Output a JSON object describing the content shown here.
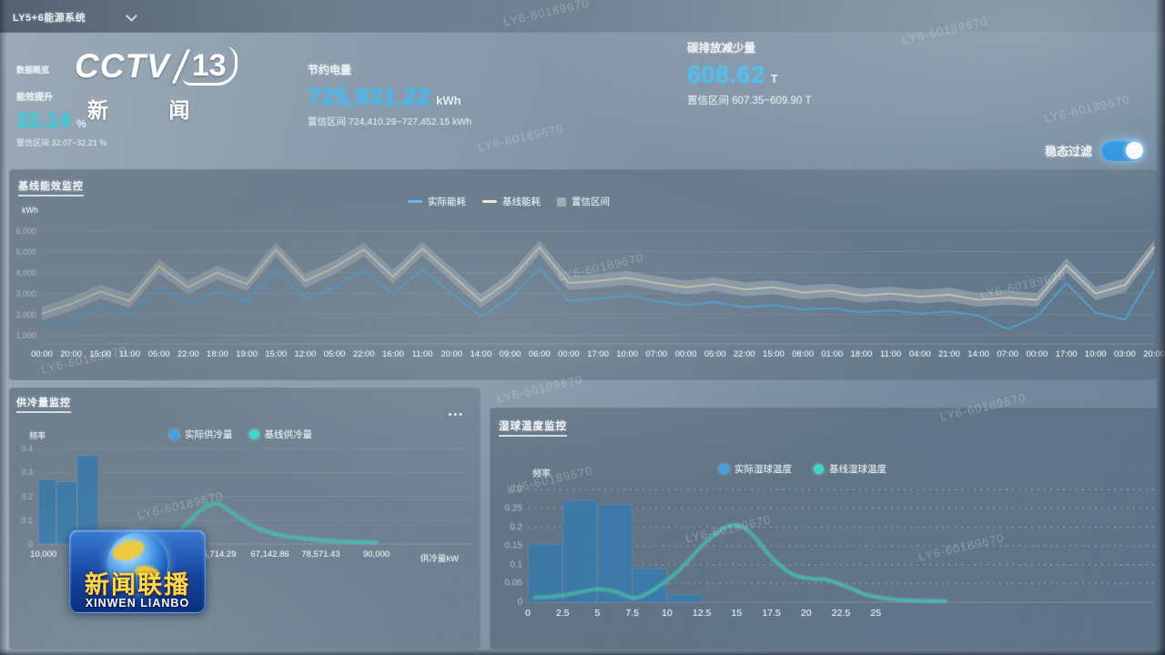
{
  "window": {
    "system_selector": "LY5+6能源系统"
  },
  "overview_label": "数据概览",
  "kpis": [
    {
      "label": "能效提升",
      "value": "32.14",
      "unit": "%",
      "confidence": "置信区间 32.07~32.21 %"
    },
    {
      "label": "节约电量",
      "value": "725,931.22",
      "unit": "kWh",
      "confidence": "置信区间 724,410.29~727,452.15 kWh"
    },
    {
      "label": "碳排放减少量",
      "value": "608.62",
      "unit": "T",
      "confidence": "置信区间 607.35~609.90 T"
    }
  ],
  "filter_toggle": {
    "label": "稳态过滤",
    "state": "on"
  },
  "watermark_text": "LY6-60189670",
  "tv_overlay": {
    "channel": {
      "brand": "CCTV",
      "number": "13",
      "caption": "新 闻"
    },
    "program": {
      "title": "新闻联播",
      "romanized": "XINWEN LIANBO"
    }
  },
  "chart_data": [
    {
      "type": "line",
      "title": "基线能效监控",
      "ylabel": "kWh",
      "legend": [
        {
          "label": "实际能耗",
          "swatch": "line",
          "color": "#58baf2"
        },
        {
          "label": "基线能耗",
          "swatch": "line",
          "color": "#f3ecca"
        },
        {
          "label": "置信区间",
          "swatch": "rect",
          "color": "rgba(226,233,240,0.45)"
        }
      ],
      "x": [
        "00:00",
        "20:00",
        "15:00",
        "11:00",
        "05:00",
        "22:00",
        "18:00",
        "19:00",
        "15:00",
        "12:00",
        "05:00",
        "22:00",
        "16:00",
        "11:00",
        "20:00",
        "14:00",
        "09:00",
        "06:00",
        "00:00",
        "17:00",
        "10:00",
        "07:00",
        "00:00",
        "05:00",
        "22:00",
        "15:00",
        "08:00",
        "01:00",
        "18:00",
        "11:00",
        "04:00",
        "21:00",
        "14:00",
        "07:00",
        "00:00",
        "17:00",
        "10:00",
        "03:00",
        "20:00"
      ],
      "yticks": [
        1000,
        2000,
        3000,
        4000,
        5000,
        6000
      ],
      "ylim": [
        600,
        6500
      ],
      "band_delta": 330,
      "series": [
        {
          "name": "实际能耗",
          "color": "#58baf2",
          "values": [
            1500,
            1700,
            2400,
            1950,
            3300,
            2500,
            3100,
            2600,
            4100,
            2750,
            3300,
            4100,
            2950,
            4150,
            3000,
            1900,
            2800,
            4200,
            2650,
            2750,
            2900,
            2650,
            2450,
            2600,
            2350,
            2450,
            2250,
            2300,
            2100,
            2200,
            2050,
            2150,
            1950,
            1300,
            1900,
            3500,
            2100,
            1750,
            4100
          ]
        },
        {
          "name": "基线能耗",
          "color": "#f3ecca",
          "values": [
            2050,
            2500,
            3100,
            2650,
            4300,
            3300,
            4000,
            3450,
            5100,
            3600,
            4250,
            5100,
            3800,
            5150,
            3900,
            2650,
            3650,
            5200,
            3500,
            3600,
            3750,
            3500,
            3300,
            3450,
            3200,
            3300,
            3050,
            3150,
            2900,
            3000,
            2850,
            2950,
            2700,
            2800,
            2700,
            4350,
            3000,
            3400,
            5200
          ]
        }
      ]
    },
    {
      "type": "histogram+density",
      "title": "供冷量监控",
      "ylabel": "频率",
      "xlabel": "供冷量kW",
      "legend": [
        {
          "label": "实际供冷量",
          "swatch": "dot",
          "color": "#3fa0e6"
        },
        {
          "label": "基线供冷量",
          "swatch": "dot",
          "color": "#35dcc8"
        }
      ],
      "ylim": [
        0,
        0.42
      ],
      "yticks": [
        0,
        0.1,
        0.2,
        0.3,
        0.4
      ],
      "xticks": [
        {
          "label": "10,000",
          "pos": 0.012
        },
        {
          "label": "55,714.29",
          "pos": 0.414
        },
        {
          "label": "67,142.86",
          "pos": 0.537
        },
        {
          "label": "78,571.43",
          "pos": 0.655
        },
        {
          "label": "90,000",
          "pos": 0.784
        }
      ],
      "bars": [
        {
          "x0": 0.0,
          "x1": 0.042,
          "value": 0.27
        },
        {
          "x0": 0.042,
          "x1": 0.09,
          "value": 0.26
        },
        {
          "x0": 0.09,
          "x1": 0.14,
          "value": 0.37
        }
      ],
      "density": [
        [
          0.3,
          0.012
        ],
        [
          0.32,
          0.035
        ],
        [
          0.345,
          0.085
        ],
        [
          0.375,
          0.14
        ],
        [
          0.405,
          0.168
        ],
        [
          0.425,
          0.162
        ],
        [
          0.45,
          0.13
        ],
        [
          0.48,
          0.095
        ],
        [
          0.51,
          0.065
        ],
        [
          0.55,
          0.042
        ],
        [
          0.59,
          0.028
        ],
        [
          0.64,
          0.018
        ],
        [
          0.69,
          0.012
        ],
        [
          0.74,
          0.008
        ],
        [
          0.784,
          0.006
        ]
      ]
    },
    {
      "type": "histogram+density",
      "title": "湿球温度监控",
      "ylabel": "频率",
      "xlabel": "",
      "legend": [
        {
          "label": "实际湿球温度",
          "swatch": "dot",
          "color": "#3fa0e6"
        },
        {
          "label": "基线湿球温度",
          "swatch": "dot",
          "color": "#35dcc8"
        }
      ],
      "ylim": [
        0,
        0.32
      ],
      "yticks": [
        0,
        0.05,
        0.1,
        0.15,
        0.2,
        0.25,
        0.3
      ],
      "xlim": [
        0,
        45
      ],
      "xticks": [
        0,
        2.5,
        5,
        7.5,
        10,
        12.5,
        15,
        17.5,
        20,
        22.5,
        25
      ],
      "bars": [
        {
          "x0": 0,
          "x1": 2.5,
          "value": 0.155
        },
        {
          "x0": 2.5,
          "x1": 5,
          "value": 0.27
        },
        {
          "x0": 5,
          "x1": 7.5,
          "value": 0.26
        },
        {
          "x0": 7.5,
          "x1": 10,
          "value": 0.09
        },
        {
          "x0": 10,
          "x1": 12.5,
          "value": 0.02
        }
      ],
      "density": [
        [
          0.5,
          0.012
        ],
        [
          2,
          0.016
        ],
        [
          3.5,
          0.025
        ],
        [
          5,
          0.035
        ],
        [
          6.3,
          0.028
        ],
        [
          7.8,
          0.012
        ],
        [
          9.5,
          0.045
        ],
        [
          11,
          0.09
        ],
        [
          12.5,
          0.15
        ],
        [
          14,
          0.195
        ],
        [
          15,
          0.205
        ],
        [
          16,
          0.185
        ],
        [
          17.5,
          0.12
        ],
        [
          19,
          0.075
        ],
        [
          20.5,
          0.062
        ],
        [
          21.5,
          0.06
        ],
        [
          23,
          0.04
        ],
        [
          24.5,
          0.018
        ],
        [
          26.5,
          0.007
        ],
        [
          28.5,
          0.004
        ],
        [
          30,
          0.003
        ]
      ]
    }
  ]
}
